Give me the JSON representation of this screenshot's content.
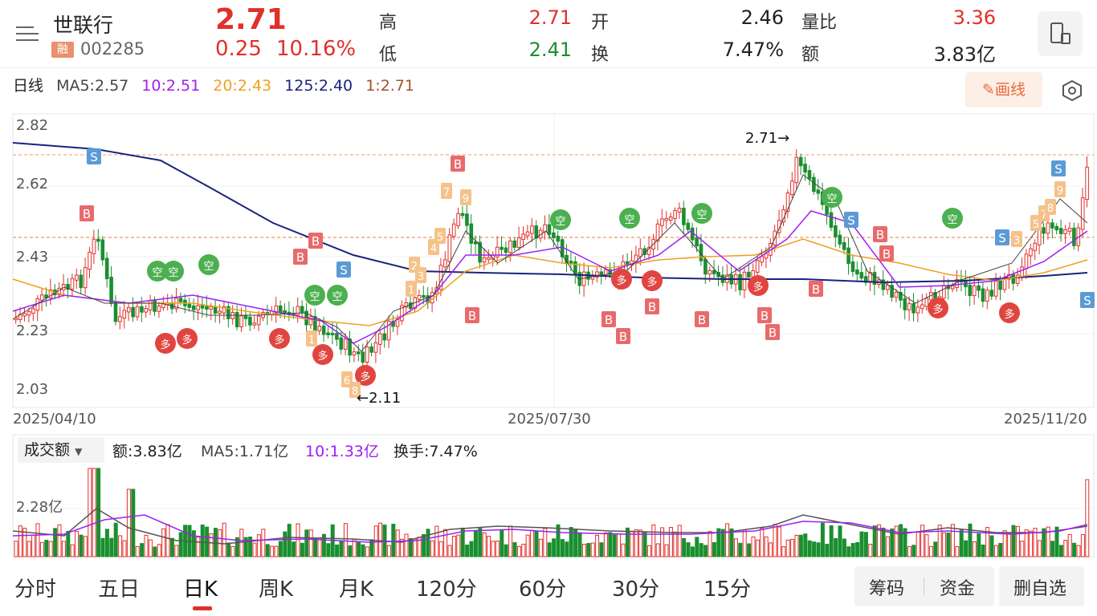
{
  "header": {
    "name": "世联行",
    "rong": "融",
    "code": "002285",
    "price": "2.71",
    "change": "0.25",
    "change_pct": "10.16%",
    "stats": [
      {
        "label": "高",
        "value": "2.71",
        "color": "red"
      },
      {
        "label": "开",
        "value": "2.46",
        "color": "dark"
      },
      {
        "label": "量比",
        "value": "3.36",
        "color": "red"
      },
      {
        "label": "低",
        "value": "2.41",
        "color": "green"
      },
      {
        "label": "换",
        "value": "7.47%",
        "color": "dark"
      },
      {
        "label": "额",
        "value": "3.83亿",
        "color": "dark"
      }
    ]
  },
  "ma_row": {
    "period": "日线",
    "ma5": "MA5:2.57",
    "ma10": "10:2.51",
    "ma20": "20:2.43",
    "ma125": "125:2.40",
    "ma1": "1:2.71"
  },
  "draw_button": "画线",
  "chart": {
    "y_ticks": [
      "2.82",
      "2.62",
      "2.43",
      "2.23",
      "2.03"
    ],
    "x_ticks": [
      "2025/04/10",
      "2025/07/30",
      "2025/11/20"
    ],
    "high_label": "2.71→",
    "low_label": "←2.11",
    "signals": [
      "B",
      "S",
      "多",
      "空",
      "1",
      "2",
      "3",
      "4",
      "5",
      "6",
      "7",
      "8",
      "9"
    ]
  },
  "volume": {
    "select_label": "成交额",
    "amount": "额:3.83亿",
    "ma5": "MA5:1.71亿",
    "ma10": "10:1.33亿",
    "turnover": "换手:7.47%",
    "y_tick": "2.28亿"
  },
  "tabs": [
    "分时",
    "五日",
    "日K",
    "周K",
    "月K",
    "120分",
    "60分",
    "30分",
    "15分"
  ],
  "bottom_buttons": {
    "chips": "筹码",
    "funds": "资金",
    "remove": "删自选"
  },
  "colors": {
    "up": "#e0302a",
    "down": "#1a8f2f",
    "ma5": "#444",
    "ma10": "#a020f0",
    "ma20": "#f0a020",
    "ma125": "#1a237e",
    "ma1": "#a0522d"
  }
}
